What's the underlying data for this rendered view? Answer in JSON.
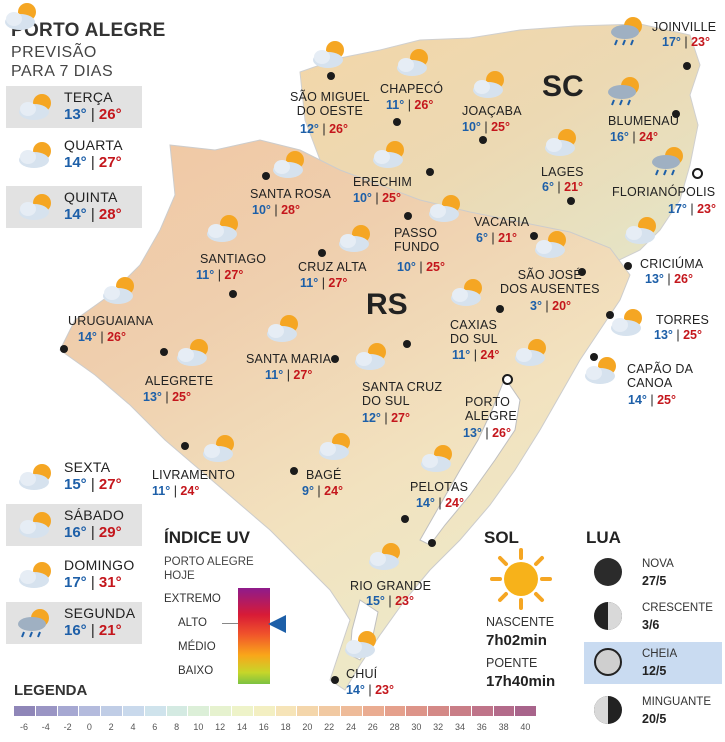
{
  "header": {
    "title": "PORTO ALEGRE",
    "subtitle_line1": "PREVISÃO",
    "subtitle_line2": "PARA 7 DIAS"
  },
  "week_top": [
    {
      "day": "TERÇA",
      "min": "13°",
      "max": "26°",
      "icon": "partly-cloudy-icon"
    },
    {
      "day": "QUARTA",
      "min": "14°",
      "max": "27°",
      "icon": "partly-cloudy-icon"
    },
    {
      "day": "QUINTA",
      "min": "14°",
      "max": "28°",
      "icon": "partly-cloudy-icon"
    }
  ],
  "week_bottom": [
    {
      "day": "SEXTA",
      "min": "15°",
      "max": "27°",
      "icon": "partly-cloudy-icon"
    },
    {
      "day": "SÁBADO",
      "min": "16°",
      "max": "29°",
      "icon": "partly-cloudy-icon"
    },
    {
      "day": "DOMINGO",
      "min": "17°",
      "max": "31°",
      "icon": "partly-cloudy-icon"
    },
    {
      "day": "SEGUNDA",
      "min": "16°",
      "max": "21°",
      "icon": "sun-cloud-rain-icon"
    }
  ],
  "states": {
    "rs": "RS",
    "sc": "SC"
  },
  "cities": {
    "joinville": {
      "name": "JOINVILLE",
      "min": "17°",
      "max": "23°"
    },
    "blumenau": {
      "name": "BLUMENAU",
      "min": "16°",
      "max": "24°"
    },
    "florianopolis": {
      "name": "FLORIANÓPOLIS",
      "min": "17°",
      "max": "23°"
    },
    "lages": {
      "name": "LAGES",
      "min": "6°",
      "max": "21°"
    },
    "criciuma": {
      "name": "CRICIÚMA",
      "min": "13°",
      "max": "26°"
    },
    "chapeco": {
      "name": "CHAPECÓ",
      "min": "11°",
      "max": "26°"
    },
    "sao_miguel": {
      "name_l1": "SÃO MIGUEL",
      "name_l2": "DO OESTE",
      "min": "12°",
      "max": "26°"
    },
    "joacaba": {
      "name": "JOAÇABA",
      "min": "10°",
      "max": "25°"
    },
    "erechim": {
      "name": "ERECHIM",
      "min": "10°",
      "max": "25°"
    },
    "santa_rosa": {
      "name": "SANTA ROSA",
      "min": "10°",
      "max": "28°"
    },
    "vacaria": {
      "name": "VACARIA",
      "min": "6°",
      "max": "21°"
    },
    "passo_fundo": {
      "name_l1": "PASSO",
      "name_l2": "FUNDO",
      "min": "10°",
      "max": "25°"
    },
    "santiago": {
      "name": "SANTIAGO",
      "min": "11°",
      "max": "27°"
    },
    "cruz_alta": {
      "name": "CRUZ ALTA",
      "min": "11°",
      "max": "27°"
    },
    "sao_jose": {
      "name_l1": "SÃO JOSÉ",
      "name_l2": "DOS AUSENTES",
      "min": "3°",
      "max": "20°"
    },
    "torres": {
      "name": "TORRES",
      "min": "13°",
      "max": "25°"
    },
    "uruguaiana": {
      "name": "URUGUAIANA",
      "min": "14°",
      "max": "26°"
    },
    "caxias": {
      "name_l1": "CAXIAS",
      "name_l2": "DO SUL",
      "min": "11°",
      "max": "24°"
    },
    "santa_maria": {
      "name": "SANTA MARIA",
      "min": "11°",
      "max": "27°"
    },
    "alegrete": {
      "name": "ALEGRETE",
      "min": "13°",
      "max": "25°"
    },
    "capao": {
      "name_l1": "CAPÃO DA",
      "name_l2": "CANOA",
      "min": "14°",
      "max": "25°"
    },
    "santa_cruz": {
      "name_l1": "SANTA CRUZ",
      "name_l2": "DO SUL",
      "min": "12°",
      "max": "27°"
    },
    "porto_alegre": {
      "name_l1": "PORTO",
      "name_l2": "ALEGRE",
      "min": "13°",
      "max": "26°"
    },
    "livramento": {
      "name": "LIVRAMENTO",
      "min": "11°",
      "max": "24°"
    },
    "bage": {
      "name": "BAGÉ",
      "min": "9°",
      "max": "24°"
    },
    "pelotas": {
      "name": "PELOTAS",
      "min": "14°",
      "max": "24°"
    },
    "rio_grande": {
      "name": "RIO GRANDE",
      "min": "15°",
      "max": "23°"
    },
    "chui": {
      "name": "CHUÍ",
      "min": "14°",
      "max": "23°"
    }
  },
  "uv": {
    "title": "ÍNDICE UV",
    "subtitle_l1": "PORTO ALEGRE",
    "subtitle_l2": "HOJE",
    "levels": [
      "EXTREMO",
      "ALTO",
      "MÉDIO",
      "BAIXO"
    ],
    "current": "ALTO"
  },
  "sun": {
    "title": "SOL",
    "sunrise_label": "NASCENTE",
    "sunrise": "7h02min",
    "sunset_label": "POENTE",
    "sunset": "17h40min"
  },
  "moon": {
    "title": "LUA",
    "phases": [
      {
        "label": "NOVA",
        "date": "27/5"
      },
      {
        "label": "CRESCENTE",
        "date": "3/6"
      },
      {
        "label": "CHEIA",
        "date": "12/5"
      },
      {
        "label": "MINGUANTE",
        "date": "20/5"
      }
    ]
  },
  "legend": {
    "title": "LEGENDA",
    "ticks": [
      "-6",
      "-4",
      "-2",
      "0",
      "2",
      "4",
      "6",
      "8",
      "10",
      "12",
      "14",
      "16",
      "18",
      "20",
      "22",
      "24",
      "26",
      "28",
      "30",
      "32",
      "34",
      "36",
      "38",
      "40"
    ],
    "colors": [
      "#8f86b8",
      "#9a95c4",
      "#a6a8d2",
      "#b4bbdd",
      "#c0cde6",
      "#c9d9ec",
      "#cfe3ec",
      "#d4eae2",
      "#dcefd8",
      "#e6f2cf",
      "#eef3c9",
      "#f3efc2",
      "#f6e4b8",
      "#f4d6ab",
      "#f1c9a2",
      "#eebb99",
      "#eaac91",
      "#e5a08c",
      "#dd9489",
      "#d48987",
      "#c97e87",
      "#bf7489",
      "#b36b8a",
      "#a8648b"
    ]
  }
}
